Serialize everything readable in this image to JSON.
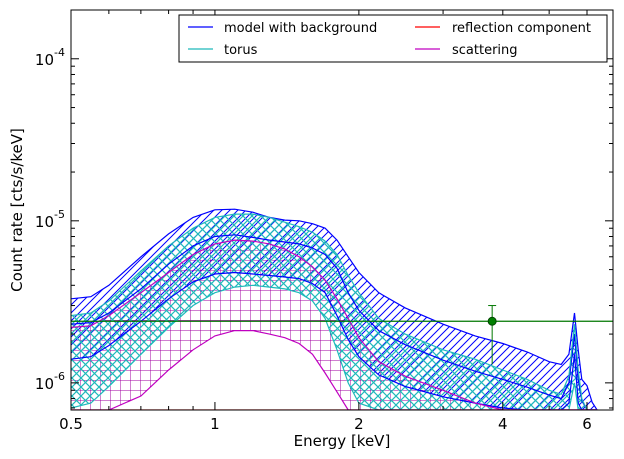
{
  "chart_data": {
    "type": "line",
    "xlabel": "Energy [keV]",
    "ylabel": "Count rate [cts/s/keV]",
    "xscale": "log",
    "yscale": "log",
    "xlim": [
      0.5,
      6.8
    ],
    "ylim": [
      6.8e-07,
      0.0002
    ],
    "x_ticks": [
      {
        "value": 0.5,
        "label": "0.5"
      },
      {
        "value": 1,
        "label": "1"
      },
      {
        "value": 2,
        "label": "2"
      },
      {
        "value": 4,
        "label": "4"
      },
      {
        "value": 6,
        "label": "6"
      }
    ],
    "y_ticks": [
      {
        "value": 1e-06,
        "base": "10",
        "exp": "-6"
      },
      {
        "value": 1e-05,
        "base": "10",
        "exp": "-5"
      },
      {
        "value": 0.0001,
        "base": "10",
        "exp": "-4"
      }
    ],
    "legend": {
      "placement": "top-right",
      "columns": 2
    },
    "colors": {
      "model": "#0000ff",
      "torus": "#1fb9bb",
      "reflection": "#ff0000",
      "scattering": "#c000c0",
      "data": "#007700"
    },
    "x": [
      0.5,
      0.55,
      0.6,
      0.7,
      0.8,
      0.9,
      1.0,
      1.1,
      1.2,
      1.3,
      1.4,
      1.5,
      1.6,
      1.7,
      1.8,
      1.9,
      2.0,
      2.2,
      2.5,
      3.0,
      3.5,
      4.0,
      4.5,
      5.0,
      5.3,
      5.5,
      5.65,
      5.75,
      5.85,
      6.0,
      6.15,
      6.3
    ],
    "series": [
      {
        "key": "model",
        "name": "model with background",
        "band": true,
        "upper": [
          3.3e-06,
          3.4e-06,
          4e-06,
          6e-06,
          8.3e-06,
          1.05e-05,
          1.17e-05,
          1.18e-05,
          1.13e-05,
          1.05e-05,
          1.01e-05,
          1e-05,
          9.6e-06,
          9e-06,
          7.6e-06,
          6e-06,
          4.8e-06,
          3.6e-06,
          2.9e-06,
          2.3e-06,
          1.95e-06,
          1.75e-06,
          1.55e-06,
          1.35e-06,
          1.3e-06,
          1.5e-06,
          2.7e-06,
          1.6e-06,
          1.05e-06,
          9.6e-07,
          7.6e-07,
          6.8e-07
        ],
        "middle": [
          2.3e-06,
          2.35e-06,
          2.7e-06,
          3.8e-06,
          5.4e-06,
          7e-06,
          8e-06,
          8.2e-06,
          7.9e-06,
          7.6e-06,
          7.4e-06,
          7.2e-06,
          6.8e-06,
          6.2e-06,
          5.1e-06,
          3.6e-06,
          2.8e-06,
          2.1e-06,
          1.72e-06,
          1.38e-06,
          1.18e-06,
          1.05e-06,
          9.4e-07,
          8.4e-07,
          8e-07,
          1e-06,
          2e-06,
          1.05e-06,
          7.8e-07,
          6.8e-07,
          6.8e-07,
          6.8e-07
        ],
        "lower": [
          1.4e-06,
          1.45e-06,
          1.7e-06,
          2.4e-06,
          3.3e-06,
          4.2e-06,
          4.7e-06,
          4.8e-06,
          4.7e-06,
          4.6e-06,
          4.5e-06,
          4.4e-06,
          4.1e-06,
          3.6e-06,
          2.6e-06,
          1.85e-06,
          1.45e-06,
          1.12e-06,
          9.5e-07,
          8.2e-07,
          7.5e-07,
          7e-07,
          6.8e-07,
          6.8e-07,
          6.8e-07,
          7.5e-07,
          1.5e-06,
          7.5e-07,
          6.8e-07,
          6.8e-07,
          6.8e-07,
          6.8e-07
        ]
      },
      {
        "key": "torus",
        "name": "torus",
        "band": true,
        "upper": [
          2.6e-06,
          2.7e-06,
          3.2e-06,
          4.9e-06,
          7e-06,
          9e-06,
          1.05e-05,
          1.1e-05,
          1.1e-05,
          1.05e-05,
          9.8e-06,
          9.2e-06,
          8.5e-06,
          7.5e-06,
          6.2e-06,
          4.6e-06,
          3.6e-06,
          2.5e-06,
          2e-06,
          1.6e-06,
          1.4e-06,
          1.2e-06,
          1.05e-06,
          9e-07,
          8.5e-07,
          1.1e-06,
          2.3e-06,
          1.2e-06,
          8e-07,
          6.8e-07,
          6.8e-07,
          6.8e-07
        ],
        "lower": [
          7e-07,
          7.5e-07,
          9.5e-07,
          1.5e-06,
          2.2e-06,
          3e-06,
          3.6e-06,
          3.9e-06,
          4e-06,
          3.9e-06,
          3.8e-06,
          3.6e-06,
          3.2e-06,
          2.5e-06,
          1.6e-06,
          1e-06,
          7.5e-07,
          6.8e-07,
          6.8e-07,
          6.8e-07,
          6.8e-07,
          6.8e-07,
          6.8e-07,
          6.8e-07,
          6.8e-07,
          6.8e-07,
          1e-06,
          6.8e-07,
          6.8e-07,
          6.8e-07,
          6.8e-07,
          6.8e-07
        ]
      },
      {
        "key": "reflection",
        "name": "reflection component",
        "band": false,
        "values": [
          6.8e-07,
          6.8e-07,
          6.8e-07,
          6.8e-07,
          6.8e-07,
          6.8e-07,
          6.8e-07,
          6.8e-07,
          6.8e-07,
          6.8e-07,
          6.8e-07,
          6.8e-07,
          6.8e-07,
          6.8e-07,
          6.8e-07,
          6.8e-07,
          6.8e-07,
          6.8e-07,
          6.8e-07,
          6.8e-07,
          6.8e-07,
          6.8e-07,
          6.8e-07,
          6.8e-07,
          6.8e-07,
          6.8e-07,
          6.8e-07,
          6.8e-07,
          6.8e-07,
          6.8e-07,
          6.8e-07,
          6.8e-07
        ]
      },
      {
        "key": "scattering",
        "name": "scattering",
        "band": true,
        "upper": [
          2.2e-06,
          2.25e-06,
          2.6e-06,
          3.6e-06,
          4.8e-06,
          6.2e-06,
          7.2e-06,
          7.6e-06,
          7.5e-06,
          7.2e-06,
          6.7e-06,
          6e-06,
          5.2e-06,
          4.3e-06,
          3.3e-06,
          2.5e-06,
          1.9e-06,
          1.35e-06,
          1.1e-06,
          9e-07,
          7.5e-07,
          6.8e-07,
          6.8e-07,
          6.8e-07,
          6.8e-07,
          6.8e-07,
          6.8e-07,
          6.8e-07,
          6.8e-07,
          6.8e-07,
          6.8e-07,
          6.8e-07
        ],
        "lower": [
          6.8e-07,
          6.8e-07,
          6.8e-07,
          8.3e-07,
          1.2e-06,
          1.6e-06,
          1.95e-06,
          2.1e-06,
          2.1e-06,
          2e-06,
          1.9e-06,
          1.75e-06,
          1.5e-06,
          1.15e-06,
          8.8e-07,
          6.8e-07,
          6.8e-07,
          6.8e-07,
          6.8e-07,
          6.8e-07,
          6.8e-07,
          6.8e-07,
          6.8e-07,
          6.8e-07,
          6.8e-07,
          6.8e-07,
          6.8e-07,
          6.8e-07,
          6.8e-07,
          6.8e-07,
          6.8e-07,
          6.8e-07
        ]
      }
    ],
    "data_point": {
      "x": 3.8,
      "y": 2.4e-06,
      "y_err_low": 1.3e-06,
      "y_err_high": 3e-06
    },
    "data_level": {
      "y": 2.4e-06
    }
  }
}
